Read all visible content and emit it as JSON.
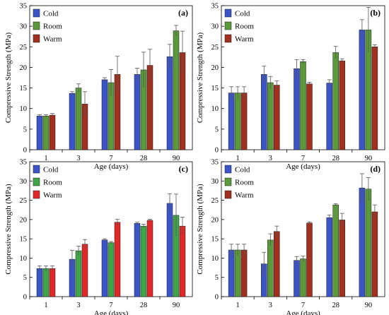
{
  "figure": {
    "background": "#ffffff"
  },
  "colors": {
    "Cold": "#3b55c8",
    "Room": "#5a9a3a",
    "Warm": "#a1301f"
  },
  "chart_data": [
    {
      "type": "bar",
      "panel": "(a)",
      "categories": [
        "1",
        "3",
        "7",
        "28",
        "90"
      ],
      "xlabel": "Age (days)",
      "ylabel": "Compressive Strength (MPa)",
      "ylim": [
        0,
        35
      ],
      "yticks": [
        0,
        5,
        10,
        15,
        20,
        25,
        30,
        35
      ],
      "legend": "top-left",
      "grid": false,
      "colors": [
        "#3b55c8",
        "#5a9a3a",
        "#a1301f"
      ],
      "series": [
        {
          "name": "Cold",
          "values": [
            8.2,
            13.7,
            17.0,
            18.3,
            22.6
          ],
          "errors": [
            0.3,
            0.4,
            0.5,
            1.5,
            3.0
          ]
        },
        {
          "name": "Room",
          "values": [
            8.2,
            15.0,
            16.3,
            19.4,
            28.9
          ],
          "errors": [
            0.3,
            1.0,
            3.2,
            4.3,
            1.3
          ]
        },
        {
          "name": "Warm",
          "values": [
            8.4,
            11.1,
            18.3,
            20.5,
            23.6
          ],
          "errors": [
            0.4,
            3.0,
            4.4,
            3.9,
            5.2
          ]
        }
      ]
    },
    {
      "type": "bar",
      "panel": "(b)",
      "categories": [
        "1",
        "3",
        "7",
        "28",
        "90"
      ],
      "xlabel": "Age (days)",
      "ylabel": "Compressive Strength (MPa)",
      "ylim": [
        0,
        35
      ],
      "yticks": [
        0,
        5,
        10,
        15,
        20,
        25,
        30,
        35
      ],
      "legend": "top-left",
      "grid": false,
      "colors": [
        "#3b55c8",
        "#5a9a3a",
        "#a1301f"
      ],
      "series": [
        {
          "name": "Cold",
          "values": [
            13.8,
            18.3,
            19.7,
            16.2,
            29.1
          ],
          "errors": [
            1.5,
            2.0,
            2.2,
            0.8,
            2.5
          ]
        },
        {
          "name": "Room",
          "values": [
            13.8,
            16.3,
            21.4,
            23.6,
            29.1
          ],
          "errors": [
            1.5,
            1.5,
            0.5,
            1.5,
            5.5
          ]
        },
        {
          "name": "Warm",
          "values": [
            13.8,
            15.7,
            16.0,
            21.6,
            25.0
          ],
          "errors": [
            1.5,
            1.0,
            0.4,
            0.5,
            0.5
          ]
        }
      ]
    },
    {
      "type": "bar",
      "panel": "(c)",
      "categories": [
        "1",
        "3",
        "7",
        "28",
        "90"
      ],
      "xlabel": "Age (days)",
      "ylabel": "Compressive Strength (MPa)",
      "ylim": [
        0,
        35
      ],
      "yticks": [
        0,
        5,
        10,
        15,
        20,
        25,
        30,
        35
      ],
      "legend": "top-left",
      "grid": false,
      "colors": [
        "#3b55c8",
        "#3fa64a",
        "#e02828"
      ],
      "series": [
        {
          "name": "Cold",
          "values": [
            7.3,
            9.7,
            14.7,
            19.0,
            24.2
          ],
          "errors": [
            0.7,
            2.3,
            0.3,
            0.3,
            2.5
          ]
        },
        {
          "name": "Room",
          "values": [
            7.3,
            11.9,
            14.0,
            18.3,
            21.1
          ],
          "errors": [
            0.7,
            1.2,
            0.3,
            0.5,
            5.5
          ]
        },
        {
          "name": "Warm",
          "values": [
            7.3,
            13.6,
            19.3,
            19.8,
            18.3
          ],
          "errors": [
            0.7,
            1.2,
            0.8,
            0.3,
            2.3
          ]
        }
      ]
    },
    {
      "type": "bar",
      "panel": "(d)",
      "categories": [
        "1",
        "3",
        "7",
        "28",
        "90"
      ],
      "xlabel": "Age (days)",
      "ylabel": "Compressive Strength (MPa)",
      "ylim": [
        0,
        35
      ],
      "yticks": [
        0,
        5,
        10,
        15,
        20,
        25,
        30,
        35
      ],
      "legend": "top-left",
      "grid": false,
      "colors": [
        "#3b55c8",
        "#5a9a3a",
        "#a1301f"
      ],
      "series": [
        {
          "name": "Cold",
          "values": [
            12.1,
            8.5,
            9.4,
            20.5,
            28.2
          ],
          "errors": [
            1.5,
            3.0,
            1.0,
            0.7,
            3.7
          ]
        },
        {
          "name": "Room",
          "values": [
            12.1,
            14.7,
            9.8,
            23.8,
            27.9
          ],
          "errors": [
            1.5,
            1.6,
            0.7,
            0.3,
            3.0
          ]
        },
        {
          "name": "Warm",
          "values": [
            12.1,
            16.9,
            19.1,
            19.9,
            22.0
          ],
          "errors": [
            1.5,
            1.4,
            0.3,
            1.7,
            1.8
          ]
        }
      ]
    }
  ]
}
